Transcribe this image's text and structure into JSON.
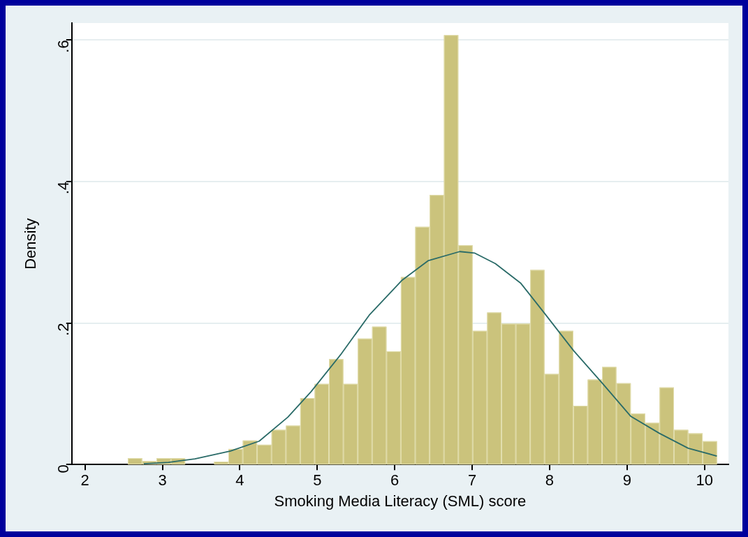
{
  "chart_data": {
    "type": "histogram",
    "xlabel": "Smoking Media Literacy (SML) score",
    "ylabel": "Density",
    "bins": [
      2.553,
      2.739,
      2.924,
      3.11,
      3.295,
      3.481,
      3.667,
      3.852,
      4.038,
      4.223,
      4.409,
      4.595,
      4.78,
      4.966,
      5.151,
      5.337,
      5.523,
      5.708,
      5.894,
      6.079,
      6.265,
      6.451,
      6.636,
      6.822,
      7.007,
      7.193,
      7.379,
      7.564,
      7.75,
      7.935,
      8.121,
      8.307,
      8.492,
      8.678,
      8.863,
      9.049,
      9.235,
      9.42,
      9.606,
      9.791,
      9.977,
      10.163
    ],
    "values": [
      0.009,
      0.005,
      0.009,
      0.009,
      0,
      0,
      0.004,
      0.022,
      0.034,
      0.028,
      0.049,
      0.055,
      0.094,
      0.114,
      0.149,
      0.114,
      0.178,
      0.195,
      0.16,
      0.265,
      0.336,
      0.381,
      0.607,
      0.31,
      0.189,
      0.215,
      0.199,
      0.199,
      0.275,
      0.128,
      0.189,
      0.083,
      0.12,
      0.138,
      0.115,
      0.072,
      0.059,
      0.109,
      0.049,
      0.044,
      0.033
    ],
    "color": "#cbc37c",
    "series": [
      {
        "type": "line",
        "color": "#2a6b68",
        "x": [
          2.76,
          3.08,
          3.42,
          3.88,
          4.25,
          4.62,
          4.92,
          5.3,
          5.67,
          6.09,
          6.43,
          6.84,
          7.03,
          7.3,
          7.63,
          7.94,
          8.31,
          8.68,
          9.05,
          9.42,
          9.79,
          10.16
        ],
        "values": [
          0.001,
          0.003,
          0.008,
          0.019,
          0.033,
          0.067,
          0.103,
          0.155,
          0.211,
          0.26,
          0.288,
          0.301,
          0.299,
          0.284,
          0.256,
          0.213,
          0.161,
          0.115,
          0.068,
          0.044,
          0.023,
          0.012
        ]
      }
    ],
    "xlim": [
      1.83,
      10.31
    ],
    "xticks": [
      2,
      3,
      4,
      5,
      6,
      7,
      8,
      9,
      10
    ],
    "ylim": [
      0,
      0.624
    ],
    "yticks": [
      0,
      {
        "value": 0.2,
        "label": ".2"
      },
      {
        "value": 0.4,
        "label": ".4"
      },
      {
        "value": 0.6,
        "label": ".6"
      }
    ],
    "grid": "y",
    "legend": false,
    "marker": "none"
  }
}
